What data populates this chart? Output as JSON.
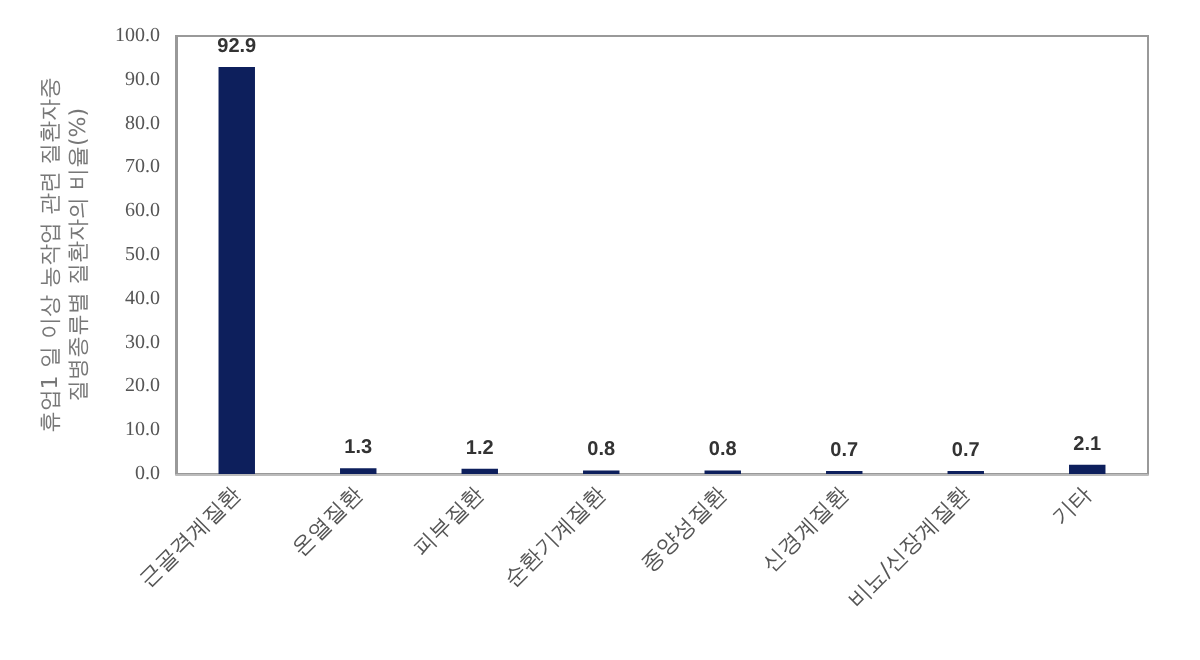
{
  "chart_data": {
    "type": "bar",
    "ylabel": "휴업1 일 이상 농작업 관련 질환자중\n질병종류별 질환자의 비율(%)",
    "categories": [
      "근골격계질환",
      "온열질환",
      "피부질환",
      "순환기계질환",
      "종양성질환",
      "신경계질환",
      "비뇨/신장계질환",
      "기타"
    ],
    "values": [
      92.9,
      1.3,
      1.2,
      0.8,
      0.8,
      0.7,
      0.7,
      2.1
    ],
    "value_labels": [
      "92.9",
      "1.3",
      "1.2",
      "0.8",
      "0.8",
      "0.7",
      "0.7",
      "2.1"
    ],
    "color": "#0d1f5c",
    "ylim": [
      0,
      100
    ],
    "yticks": [
      {
        "value": 0,
        "label": "0.0"
      },
      {
        "value": 10,
        "label": "10.0"
      },
      {
        "value": 20,
        "label": "20.0"
      },
      {
        "value": 30,
        "label": "30.0"
      },
      {
        "value": 40,
        "label": "40.0"
      },
      {
        "value": 50,
        "label": "50.0"
      },
      {
        "value": 60,
        "label": "60.0"
      },
      {
        "value": 70,
        "label": "70.0"
      },
      {
        "value": 80,
        "label": "80.0"
      },
      {
        "value": 90,
        "label": "90.0"
      },
      {
        "value": 100,
        "label": "100.0"
      }
    ]
  }
}
